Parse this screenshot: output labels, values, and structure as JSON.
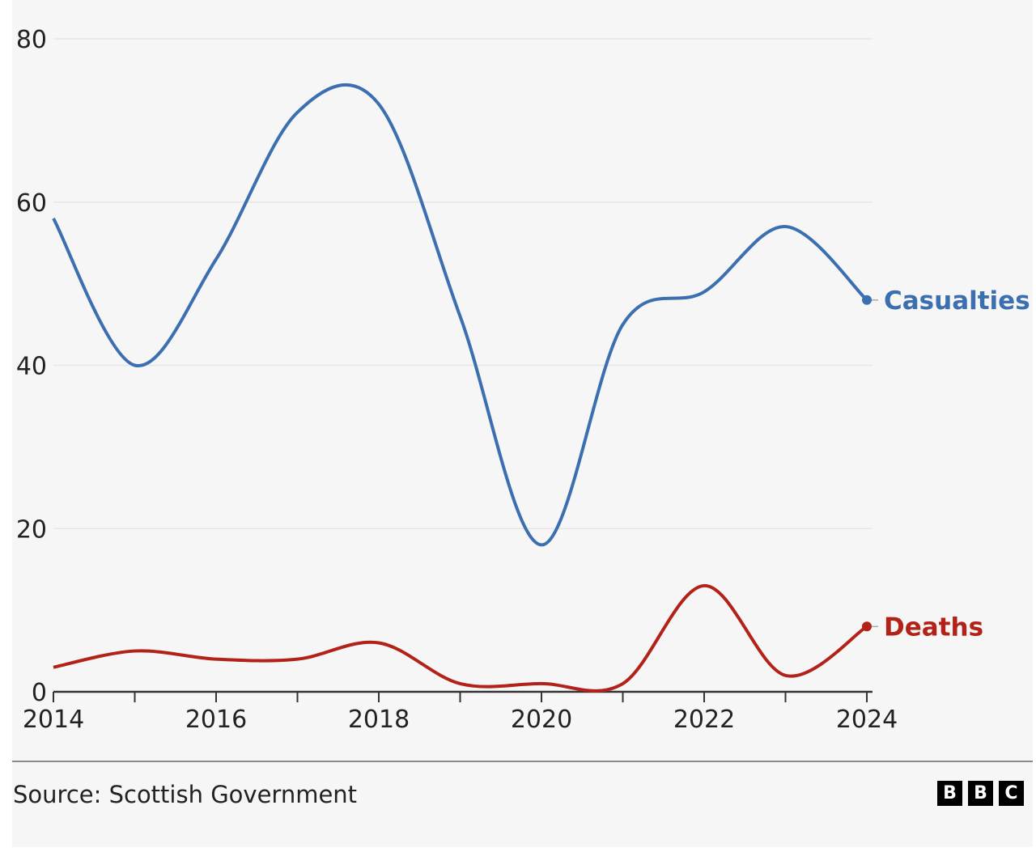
{
  "chart_data": {
    "type": "line",
    "title": "",
    "xlabel": "",
    "ylabel": "",
    "x": [
      2014,
      2015,
      2016,
      2017,
      2018,
      2019,
      2020,
      2021,
      2022,
      2023,
      2024
    ],
    "xlim": [
      2014,
      2024
    ],
    "ylim": [
      0,
      80
    ],
    "x_ticks": [
      "2014",
      "2016",
      "2018",
      "2020",
      "2022",
      "2024"
    ],
    "x_tick_values": [
      2014,
      2016,
      2018,
      2020,
      2022,
      2024
    ],
    "x_minor_ticks": [
      2015,
      2017,
      2019,
      2021,
      2023
    ],
    "y_ticks": [
      "0",
      "20",
      "40",
      "60",
      "80"
    ],
    "y_tick_values": [
      0,
      20,
      40,
      60,
      80
    ],
    "grid": true,
    "legend": "direct-labels-right",
    "series": [
      {
        "name": "Casualties",
        "color": "#3b6fb0",
        "values": [
          58,
          40,
          53,
          71,
          72,
          46,
          18,
          45,
          49,
          57,
          48
        ]
      },
      {
        "name": "Deaths",
        "color": "#b22218",
        "values": [
          3,
          5,
          4,
          4,
          6,
          1,
          1,
          1,
          13,
          2,
          8
        ]
      }
    ]
  },
  "footer": {
    "source": "Source: Scottish Government",
    "logo_letters": [
      "B",
      "B",
      "C"
    ]
  }
}
